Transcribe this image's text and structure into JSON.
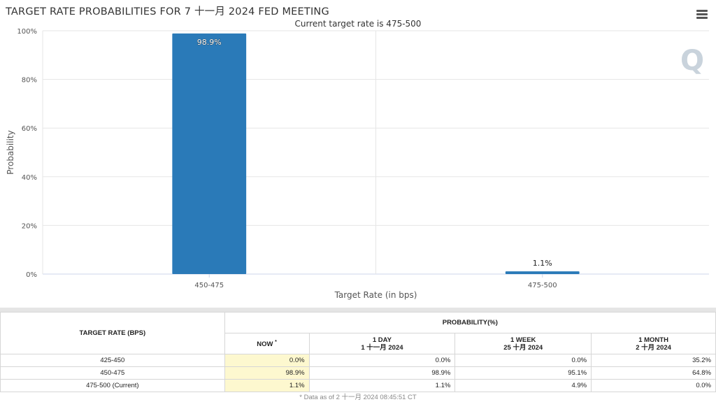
{
  "header": {
    "title": "TARGET RATE PROBABILITIES FOR 7 十一月 2024 FED MEETING",
    "subtitle": "Current target rate is 475-500",
    "watermark": "Q"
  },
  "chart_data": {
    "type": "bar",
    "title": "TARGET RATE PROBABILITIES FOR 7 十一月 2024 FED MEETING",
    "subtitle": "Current target rate is 475-500",
    "categories": [
      "450-475",
      "475-500"
    ],
    "values": [
      98.9,
      1.1
    ],
    "data_labels": [
      "98.9%",
      "1.1%"
    ],
    "xlabel": "Target Rate (in bps)",
    "ylabel": "Probability",
    "ylim": [
      0,
      100
    ],
    "yticks": [
      0,
      20,
      40,
      60,
      80,
      100
    ],
    "ytick_labels": [
      "0%",
      "20%",
      "40%",
      "60%",
      "80%",
      "100%"
    ],
    "grid": true,
    "bar_color": "#2a7ab8"
  },
  "table": {
    "rate_header": "TARGET RATE (BPS)",
    "prob_header": "PROBABILITY(%)",
    "columns": [
      {
        "label": "NOW",
        "sup": "*",
        "date": ""
      },
      {
        "label": "1 DAY",
        "date": "1 十一月 2024"
      },
      {
        "label": "1 WEEK",
        "date": "25 十月 2024"
      },
      {
        "label": "1 MONTH",
        "date": "2 十月 2024"
      }
    ],
    "rows": [
      {
        "rate": "425-450",
        "values": [
          "0.0%",
          "0.0%",
          "0.0%",
          "35.2%"
        ]
      },
      {
        "rate": "450-475",
        "values": [
          "98.9%",
          "98.9%",
          "95.1%",
          "64.8%"
        ]
      },
      {
        "rate": "475-500 (Current)",
        "values": [
          "1.1%",
          "1.1%",
          "4.9%",
          "0.0%"
        ]
      }
    ],
    "now_highlight_color": "#fdf8cf"
  },
  "footnote": "* Data as of 2 十一月 2024 08:45:51 CT"
}
